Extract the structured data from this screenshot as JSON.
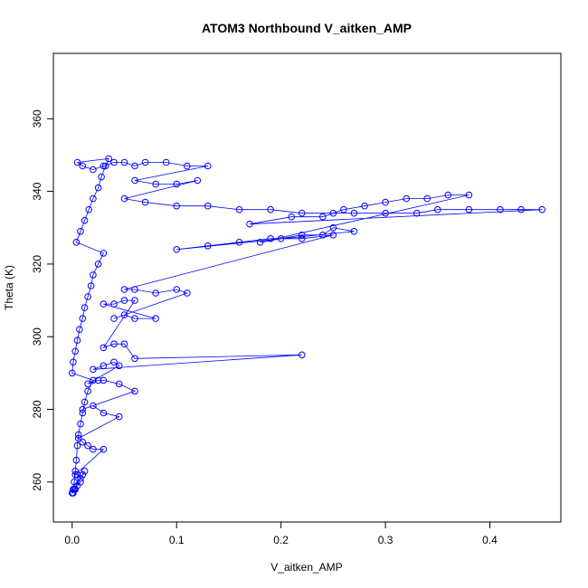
{
  "chart_data": {
    "type": "scatter",
    "title": "ATOM3 Northbound V_aitken_AMP",
    "xlabel": "V_aitken_AMP",
    "ylabel": "Theta (K)",
    "xlim": [
      -0.018,
      0.468
    ],
    "ylim": [
      249,
      378
    ],
    "x_ticks": [
      0.0,
      0.1,
      0.2,
      0.3,
      0.4
    ],
    "x_tick_labels": [
      "0.0",
      "0.1",
      "0.2",
      "0.3",
      "0.4"
    ],
    "y_ticks": [
      260,
      280,
      300,
      320,
      340,
      360
    ],
    "y_tick_labels": [
      "260",
      "280",
      "300",
      "320",
      "340",
      "360"
    ],
    "grid": false,
    "series": [
      {
        "color": "#0000ff",
        "marker": "open-circle",
        "connected": true,
        "x": [
          0.0,
          0.001,
          0.002,
          0.003,
          0.004,
          0.005,
          0.006,
          0.008,
          0.01,
          0.012,
          0.015,
          0.02,
          0.0,
          0.001,
          0.003,
          0.005,
          0.007,
          0.01,
          0.012,
          0.015,
          0.018,
          0.02,
          0.025,
          0.03,
          0.004,
          0.008,
          0.012,
          0.016,
          0.02,
          0.025,
          0.028,
          0.032,
          0.035,
          0.005,
          0.01,
          0.02,
          0.03,
          0.04,
          0.05,
          0.06,
          0.07,
          0.09,
          0.11,
          0.13,
          0.06,
          0.08,
          0.1,
          0.12,
          0.05,
          0.07,
          0.1,
          0.13,
          0.16,
          0.19,
          0.22,
          0.25,
          0.27,
          0.3,
          0.33,
          0.35,
          0.38,
          0.41,
          0.43,
          0.45,
          0.17,
          0.21,
          0.24,
          0.26,
          0.28,
          0.3,
          0.32,
          0.34,
          0.36,
          0.38,
          0.18,
          0.2,
          0.22,
          0.24,
          0.25,
          0.27,
          0.1,
          0.13,
          0.16,
          0.19,
          0.22,
          0.25,
          0.05,
          0.06,
          0.08,
          0.1,
          0.11,
          0.04,
          0.05,
          0.06,
          0.08,
          0.03,
          0.04,
          0.05,
          0.06,
          0.03,
          0.04,
          0.05,
          0.06,
          0.22,
          0.02,
          0.03,
          0.04,
          0.045,
          0.015,
          0.025,
          0.03,
          0.045,
          0.06,
          0.01,
          0.02,
          0.03,
          0.045,
          0.006,
          0.01,
          0.015,
          0.02,
          0.03,
          0.003,
          0.005,
          0.008,
          0.01,
          0.012,
          0.0,
          0.001,
          0.002,
          0.003,
          0.005,
          0.008
        ],
        "y": [
          257,
          258,
          260,
          263,
          266,
          270,
          273,
          276,
          279,
          282,
          285,
          288,
          290,
          293,
          296,
          299,
          302,
          305,
          308,
          311,
          314,
          317,
          320,
          323,
          326,
          329,
          332,
          335,
          338,
          341,
          344,
          347,
          349,
          348,
          347,
          346,
          347,
          348,
          348,
          347,
          348,
          348,
          347,
          347,
          343,
          342,
          342,
          343,
          338,
          337,
          336,
          336,
          335,
          335,
          334,
          334,
          334,
          334,
          334,
          335,
          335,
          335,
          335,
          335,
          331,
          333,
          333,
          335,
          336,
          337,
          338,
          338,
          339,
          339,
          326,
          327,
          328,
          328,
          330,
          329,
          324,
          325,
          326,
          327,
          327,
          328,
          313,
          313,
          312,
          313,
          312,
          305,
          306,
          305,
          305,
          309,
          309,
          310,
          310,
          297,
          298,
          298,
          294,
          295,
          291,
          292,
          293,
          292,
          287,
          288,
          288,
          287,
          285,
          280,
          281,
          279,
          278,
          272,
          271,
          270,
          269,
          269,
          262,
          262,
          261,
          262,
          263,
          257,
          257,
          258,
          258,
          259,
          260
        ]
      }
    ]
  }
}
